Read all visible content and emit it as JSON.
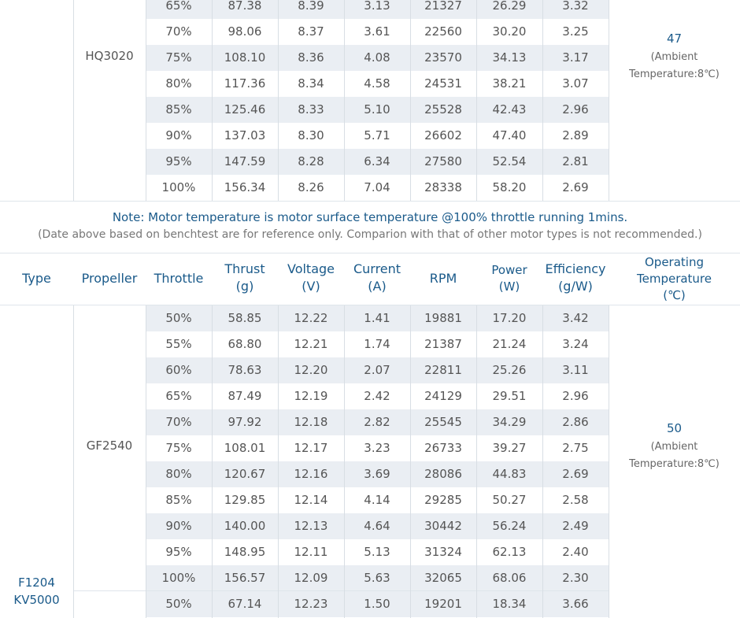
{
  "section1": {
    "propeller": "HQ3020",
    "temperature": {
      "value": "47",
      "note_line1": "(Ambient",
      "note_line2": "Temperature:8℃)"
    },
    "rows": [
      [
        "65%",
        "87.38",
        "8.39",
        "3.13",
        "21327",
        "26.29",
        "3.32"
      ],
      [
        "70%",
        "98.06",
        "8.37",
        "3.61",
        "22560",
        "30.20",
        "3.25"
      ],
      [
        "75%",
        "108.10",
        "8.36",
        "4.08",
        "23570",
        "34.13",
        "3.17"
      ],
      [
        "80%",
        "117.36",
        "8.34",
        "4.58",
        "24531",
        "38.21",
        "3.07"
      ],
      [
        "85%",
        "125.46",
        "8.33",
        "5.10",
        "25528",
        "42.43",
        "2.96"
      ],
      [
        "90%",
        "137.03",
        "8.30",
        "5.71",
        "26602",
        "47.40",
        "2.89"
      ],
      [
        "95%",
        "147.59",
        "8.28",
        "6.34",
        "27580",
        "52.54",
        "2.81"
      ],
      [
        "100%",
        "156.34",
        "8.26",
        "7.04",
        "28338",
        "58.20",
        "2.69"
      ]
    ]
  },
  "note": {
    "main": "Note: Motor temperature is motor surface temperature @100% throttle running 1mins.",
    "sub": "(Date above based on benchtest are for reference only. Comparion with that of other motor types is not recommended.)"
  },
  "headers": {
    "type": "Type",
    "propeller": "Propeller",
    "throttle": "Throttle",
    "thrust_1": "Thrust",
    "thrust_2": "(g)",
    "voltage_1": "Voltage",
    "voltage_2": "(V)",
    "current_1": "Current",
    "current_2": "(A)",
    "rpm": "RPM",
    "power_1": "Power",
    "power_2": "(W)",
    "efficiency_1": "Efficiency",
    "efficiency_2": "(g/W)",
    "optemp_1": "Operating",
    "optemp_2": "Temperature",
    "optemp_3": "(℃)"
  },
  "section2": {
    "type_line1": "F1204",
    "type_line2": "KV5000",
    "propeller": "GF2540",
    "temperature": {
      "value": "50",
      "note_line1": "(Ambient",
      "note_line2": "Temperature:8℃)"
    },
    "rows": [
      [
        "50%",
        "58.85",
        "12.22",
        "1.41",
        "19881",
        "17.20",
        "3.42"
      ],
      [
        "55%",
        "68.80",
        "12.21",
        "1.74",
        "21387",
        "21.24",
        "3.24"
      ],
      [
        "60%",
        "78.63",
        "12.20",
        "2.07",
        "22811",
        "25.26",
        "3.11"
      ],
      [
        "65%",
        "87.49",
        "12.19",
        "2.42",
        "24129",
        "29.51",
        "2.96"
      ],
      [
        "70%",
        "97.92",
        "12.18",
        "2.82",
        "25545",
        "34.29",
        "2.86"
      ],
      [
        "75%",
        "108.01",
        "12.17",
        "3.23",
        "26733",
        "39.27",
        "2.75"
      ],
      [
        "80%",
        "120.67",
        "12.16",
        "3.69",
        "28086",
        "44.83",
        "2.69"
      ],
      [
        "85%",
        "129.85",
        "12.14",
        "4.14",
        "29285",
        "50.27",
        "2.58"
      ],
      [
        "90%",
        "140.00",
        "12.13",
        "4.64",
        "30442",
        "56.24",
        "2.49"
      ],
      [
        "95%",
        "148.95",
        "12.11",
        "5.13",
        "31324",
        "62.13",
        "2.40"
      ],
      [
        "100%",
        "156.57",
        "12.09",
        "5.63",
        "32065",
        "68.06",
        "2.30"
      ]
    ]
  },
  "section3": {
    "rows": [
      [
        "50%",
        "67.14",
        "12.23",
        "1.50",
        "19201",
        "18.34",
        "3.66"
      ]
    ]
  }
}
